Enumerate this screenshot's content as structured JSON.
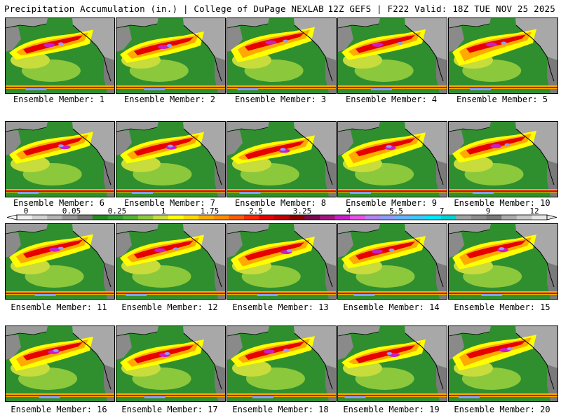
{
  "header": {
    "left": "Precipitation Accumulation (in.) | College of DuPage NEXLAB",
    "right": "12Z GEFS | F222 Valid: 18Z TUE NOV 25 2025"
  },
  "chart_data": {
    "type": "heatmap",
    "title": "Precipitation Accumulation (in.)",
    "source": "College of DuPage NEXLAB",
    "model": "12Z GEFS",
    "forecast_hour": "F222",
    "valid": "18Z TUE NOV 25 2025",
    "units": "in.",
    "members": [
      "Ensemble Member: 1",
      "Ensemble Member: 2",
      "Ensemble Member: 3",
      "Ensemble Member: 4",
      "Ensemble Member: 5",
      "Ensemble Member: 6",
      "Ensemble Member: 7",
      "Ensemble Member: 8",
      "Ensemble Member: 9",
      "Ensemble Member: 10",
      "Ensemble Member: 11",
      "Ensemble Member: 12",
      "Ensemble Member: 13",
      "Ensemble Member: 14",
      "Ensemble Member: 15",
      "Ensemble Member: 16",
      "Ensemble Member: 17",
      "Ensemble Member: 18",
      "Ensemble Member: 19",
      "Ensemble Member: 20"
    ],
    "legend": {
      "ticks": [
        "0",
        "0.05",
        "0.25",
        "1",
        "1.75",
        "2.5",
        "3.25",
        "4",
        "5.5",
        "7",
        "9",
        "12"
      ],
      "colors": [
        "#f0f0f0",
        "#d2d2d2",
        "#b4b4b4",
        "#969696",
        "#787878",
        "#1e8c1e",
        "#32a032",
        "#50b432",
        "#8cc83c",
        "#c8dc3c",
        "#ffff00",
        "#ffd700",
        "#ffaa00",
        "#ff8c00",
        "#ff5a00",
        "#ff2800",
        "#e60000",
        "#be0000",
        "#8c0000",
        "#780a50",
        "#a0147d",
        "#c81ec8",
        "#e650e6",
        "#b482f0",
        "#8c9bff",
        "#64b4ff",
        "#3cc8ff",
        "#00e6ff",
        "#00d2d2",
        "#a0a0a0",
        "#8c8c8c",
        "#787878",
        "#aaaaaa",
        "#c8c8c8",
        "#e6e6e6"
      ]
    }
  }
}
